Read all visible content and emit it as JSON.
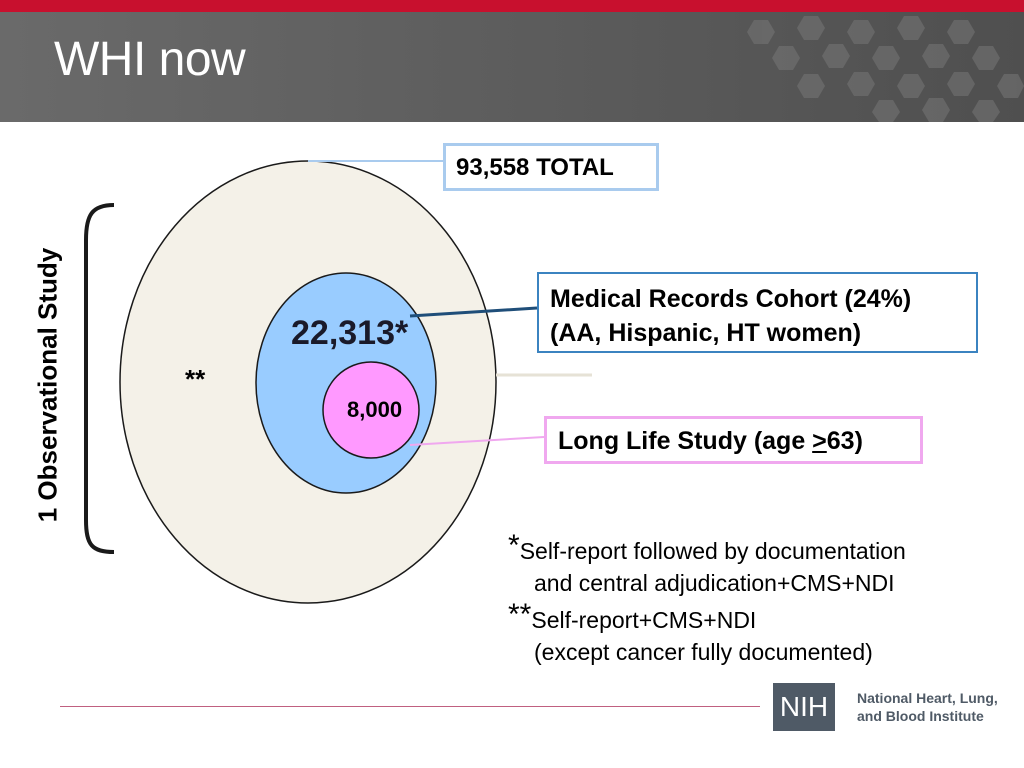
{
  "slide": {
    "title": "WHI now"
  },
  "side_label": "1 Observational Study",
  "circles": {
    "outer": {
      "label": "**"
    },
    "middle": {
      "label": "22,313*"
    },
    "inner": {
      "label": "8,000"
    }
  },
  "callouts": {
    "total": "93,558 TOTAL",
    "medical_line1": "Medical Records Cohort (24%)",
    "medical_line2": "(AA, Hispanic, HT women)",
    "long_life_prefix": "Long Life Study (age ",
    "long_life_symbol": ">",
    "long_life_suffix": "63)"
  },
  "footnotes": [
    {
      "marker": "*",
      "line1": "Self-report followed by documentation",
      "line2": "and central adjudication+CMS+NDI"
    },
    {
      "marker": "**",
      "line1": "Self-report+CMS+NDI",
      "line2": "(except cancer fully documented)"
    }
  ],
  "logo": {
    "mark": "NIH",
    "name_line1": "National Heart, Lung,",
    "name_line2": "and Blood Institute"
  },
  "colors": {
    "accent_red": "#c8102e",
    "header_gray": "#5e5e5e",
    "outer_fill": "#f4f1e8",
    "middle_fill": "#99ccff",
    "inner_fill": "#ff99ff"
  }
}
